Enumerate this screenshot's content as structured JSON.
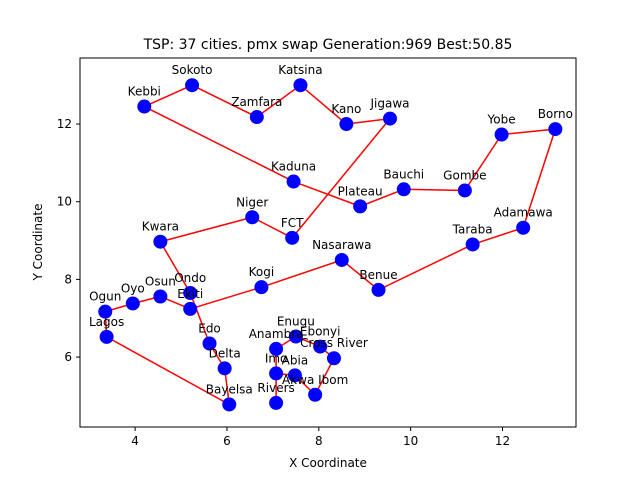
{
  "chart_data": {
    "type": "scatter",
    "title": "TSP: 37 cities. pmx swap Generation:969 Best:50.85",
    "xlabel": "X Coordinate",
    "ylabel": "Y Coordinate",
    "xlim": [
      2.8,
      13.6
    ],
    "ylim": [
      4.2,
      13.7
    ],
    "xticks": [
      4,
      6,
      8,
      10,
      12
    ],
    "yticks": [
      6,
      8,
      10,
      12
    ],
    "grid": false,
    "colors": {
      "point": "#0000ff",
      "route": "#ff0000",
      "axis": "#000000"
    },
    "points": [
      {
        "name": "Sokoto",
        "x": 5.24,
        "y": 13.0
      },
      {
        "name": "Katsina",
        "x": 7.6,
        "y": 13.0
      },
      {
        "name": "Kebbi",
        "x": 4.2,
        "y": 12.45
      },
      {
        "name": "Zamfara",
        "x": 6.65,
        "y": 12.18
      },
      {
        "name": "Kano",
        "x": 8.6,
        "y": 12.0
      },
      {
        "name": "Jigawa",
        "x": 9.55,
        "y": 12.14
      },
      {
        "name": "Yobe",
        "x": 11.98,
        "y": 11.73
      },
      {
        "name": "Borno",
        "x": 13.15,
        "y": 11.87
      },
      {
        "name": "Kaduna",
        "x": 7.45,
        "y": 10.52
      },
      {
        "name": "Bauchi",
        "x": 9.85,
        "y": 10.32
      },
      {
        "name": "Gombe",
        "x": 11.18,
        "y": 10.29
      },
      {
        "name": "Plateau",
        "x": 8.9,
        "y": 9.88
      },
      {
        "name": "Niger",
        "x": 6.55,
        "y": 9.6
      },
      {
        "name": "Adamawa",
        "x": 12.45,
        "y": 9.33
      },
      {
        "name": "FCT",
        "x": 7.42,
        "y": 9.07
      },
      {
        "name": "Kwara",
        "x": 4.55,
        "y": 8.97
      },
      {
        "name": "Taraba",
        "x": 11.35,
        "y": 8.9
      },
      {
        "name": "Nasarawa",
        "x": 8.5,
        "y": 8.5
      },
      {
        "name": "Kogi",
        "x": 6.75,
        "y": 7.8
      },
      {
        "name": "Benue",
        "x": 9.3,
        "y": 7.73
      },
      {
        "name": "Ondo",
        "x": 5.2,
        "y": 7.65
      },
      {
        "name": "Osun",
        "x": 4.55,
        "y": 7.56
      },
      {
        "name": "Oyo",
        "x": 3.95,
        "y": 7.38
      },
      {
        "name": "Ekiti",
        "x": 5.2,
        "y": 7.24
      },
      {
        "name": "Ogun",
        "x": 3.35,
        "y": 7.17
      },
      {
        "name": "Enugu",
        "x": 7.5,
        "y": 6.53
      },
      {
        "name": "Lagos",
        "x": 3.38,
        "y": 6.52
      },
      {
        "name": "Edo",
        "x": 5.62,
        "y": 6.35
      },
      {
        "name": "Ebonyi",
        "x": 8.03,
        "y": 6.27
      },
      {
        "name": "Anambra",
        "x": 7.07,
        "y": 6.21
      },
      {
        "name": "Cross River",
        "x": 8.33,
        "y": 5.97
      },
      {
        "name": "Delta",
        "x": 5.95,
        "y": 5.71
      },
      {
        "name": "Imo",
        "x": 7.07,
        "y": 5.58
      },
      {
        "name": "Abia",
        "x": 7.48,
        "y": 5.53
      },
      {
        "name": "Akwa Ibom",
        "x": 7.92,
        "y": 5.03
      },
      {
        "name": "Rivers",
        "x": 7.07,
        "y": 4.82
      },
      {
        "name": "Bayelsa",
        "x": 6.05,
        "y": 4.78
      }
    ],
    "route": [
      "Sokoto",
      "Zamfara",
      "Katsina",
      "Kano",
      "Jigawa",
      "FCT",
      "Niger",
      "Kwara",
      "Ondo",
      "Edo",
      "Delta",
      "Bayelsa",
      "Lagos",
      "Ogun",
      "Oyo",
      "Osun",
      "Ekiti",
      "Kogi",
      "Nasarawa",
      "Benue",
      "Taraba",
      "Adamawa",
      "Borno",
      "Yobe",
      "Gombe",
      "Bauchi",
      "Plateau",
      "Kaduna",
      "Kebbi",
      "Sokoto"
    ],
    "route_closed": false,
    "route_extra_segments": [
      [
        "Rivers",
        "Anambra"
      ],
      [
        "Anambra",
        "Enugu"
      ],
      [
        "Enugu",
        "Ebonyi"
      ],
      [
        "Ebonyi",
        "Cross River"
      ],
      [
        "Cross River",
        "Akwa Ibom"
      ],
      [
        "Akwa Ibom",
        "Abia"
      ],
      [
        "Abia",
        "Imo"
      ]
    ]
  }
}
